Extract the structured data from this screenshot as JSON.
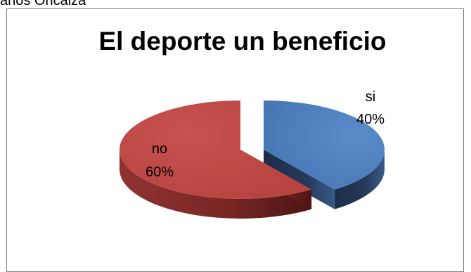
{
  "header_text": "anos Oricaiza",
  "chart_data": {
    "type": "pie",
    "title": "El deporte un beneficio",
    "categories": [
      "si",
      "no"
    ],
    "values": [
      40,
      60
    ],
    "percent_labels": [
      "40%",
      "60%"
    ],
    "colors": {
      "si": "#4f81bd",
      "no": "#c0504d"
    },
    "style": "3d-exploded",
    "legend": "none"
  }
}
